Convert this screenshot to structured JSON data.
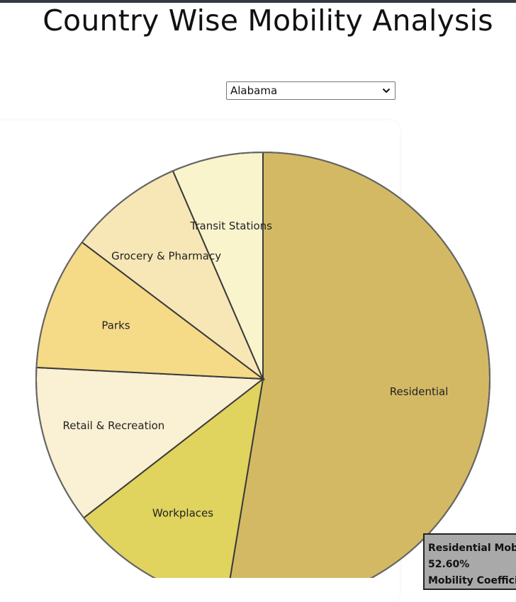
{
  "header": {
    "title": "Country Wise Mobility Analysis"
  },
  "state_select": {
    "selected": "Alabama"
  },
  "chart_data": {
    "type": "pie",
    "categories": [
      "Residential",
      "Workplaces",
      "Retail & Recreation",
      "Parks",
      "Grocery & Pharmacy",
      "Transit Stations"
    ],
    "values": [
      52.6,
      11.9,
      11.3,
      9.5,
      8.2,
      6.5
    ],
    "unit": "%",
    "colors": [
      "#d4b965",
      "#e0d35e",
      "#faf0d3",
      "#f5da88",
      "#f8e7b6",
      "#faf4cd"
    ]
  },
  "tooltip": {
    "title": "Residential Mobility",
    "value": "52.60%",
    "coefficient_label": "Mobility Coefficient"
  }
}
